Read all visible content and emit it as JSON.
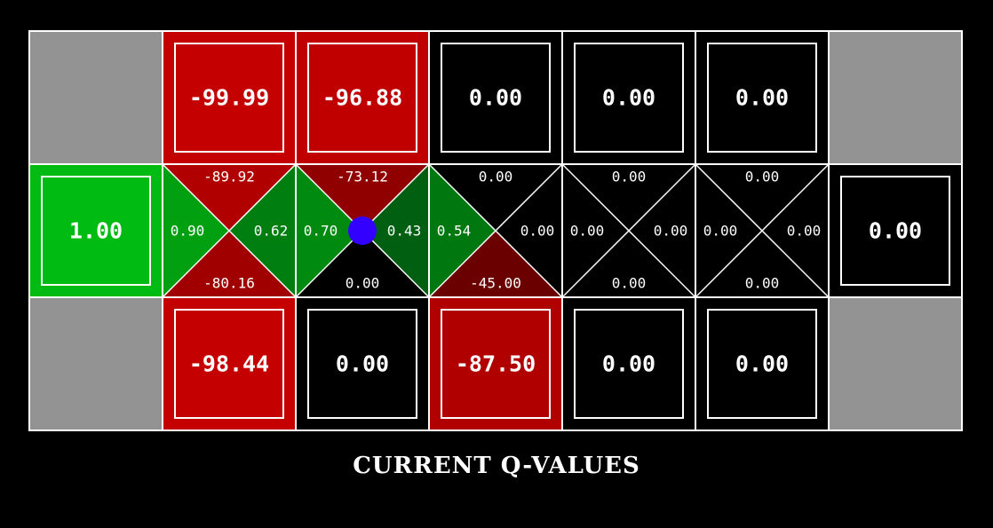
{
  "title": "CURRENT Q-VALUES",
  "colors": {
    "wall": "#939393",
    "neutral": "#000000",
    "goal": "#00bb11",
    "negative_strong": "#c40000",
    "negative_mid": "#a00000",
    "negative_weak": "#6a0000",
    "positive_strong": "#00aa11",
    "positive_mid": "#007f10",
    "positive_weak": "#005f10",
    "agent": "#3300ff",
    "line": "#ffffff"
  },
  "grid": {
    "rows": 3,
    "cols": 7,
    "agent": {
      "row": 1,
      "col": 2
    },
    "cells": [
      [
        {
          "type": "wall"
        },
        {
          "type": "state",
          "value": "-99.99",
          "fill": "#c40000"
        },
        {
          "type": "state",
          "value": "-96.88",
          "fill": "#c00000"
        },
        {
          "type": "state",
          "value": "0.00",
          "fill": "#000000"
        },
        {
          "type": "state",
          "value": "0.00",
          "fill": "#000000"
        },
        {
          "type": "state",
          "value": "0.00",
          "fill": "#000000"
        },
        {
          "type": "wall"
        }
      ],
      [
        {
          "type": "state",
          "value": "1.00",
          "fill": "#00bb11"
        },
        {
          "type": "q",
          "up": "-89.92",
          "right": "0.62",
          "down": "-80.16",
          "left": "0.90",
          "fills": {
            "up": "#b00000",
            "right": "#007f10",
            "down": "#a00000",
            "left": "#00a011"
          }
        },
        {
          "type": "q",
          "up": "-73.12",
          "right": "0.43",
          "down": "0.00",
          "left": "0.70",
          "fills": {
            "up": "#900000",
            "right": "#005f10",
            "down": "#000000",
            "left": "#008a10"
          }
        },
        {
          "type": "q",
          "up": "0.00",
          "right": "0.00",
          "down": "-45.00",
          "left": "0.54",
          "fills": {
            "up": "#000000",
            "right": "#000000",
            "down": "#6a0000",
            "left": "#007810"
          }
        },
        {
          "type": "q",
          "up": "0.00",
          "right": "0.00",
          "down": "0.00",
          "left": "0.00",
          "fills": {
            "up": "#000000",
            "right": "#000000",
            "down": "#000000",
            "left": "#000000"
          }
        },
        {
          "type": "q",
          "up": "0.00",
          "right": "0.00",
          "down": "0.00",
          "left": "0.00",
          "fills": {
            "up": "#000000",
            "right": "#000000",
            "down": "#000000",
            "left": "#000000"
          }
        },
        {
          "type": "state",
          "value": "0.00",
          "fill": "#000000"
        }
      ],
      [
        {
          "type": "wall"
        },
        {
          "type": "state",
          "value": "-98.44",
          "fill": "#c40000"
        },
        {
          "type": "state",
          "value": "0.00",
          "fill": "#000000"
        },
        {
          "type": "state",
          "value": "-87.50",
          "fill": "#b00000"
        },
        {
          "type": "state",
          "value": "0.00",
          "fill": "#000000"
        },
        {
          "type": "state",
          "value": "0.00",
          "fill": "#000000"
        },
        {
          "type": "wall"
        }
      ]
    ]
  }
}
